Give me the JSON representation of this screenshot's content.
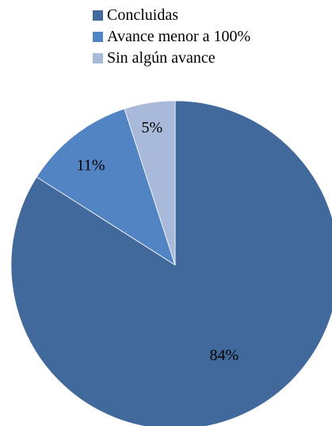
{
  "chart_data": {
    "type": "pie",
    "title": "",
    "legend_position": "top",
    "slices": [
      {
        "label": "Concluidas",
        "value": 84,
        "display": "84%",
        "color": "#41699B"
      },
      {
        "label": "Avance menor a 100%",
        "value": 11,
        "display": "11%",
        "color": "#5283C2"
      },
      {
        "label": "Sin algún avance",
        "value": 5,
        "display": "5%",
        "color": "#A8B9D9"
      }
    ]
  }
}
